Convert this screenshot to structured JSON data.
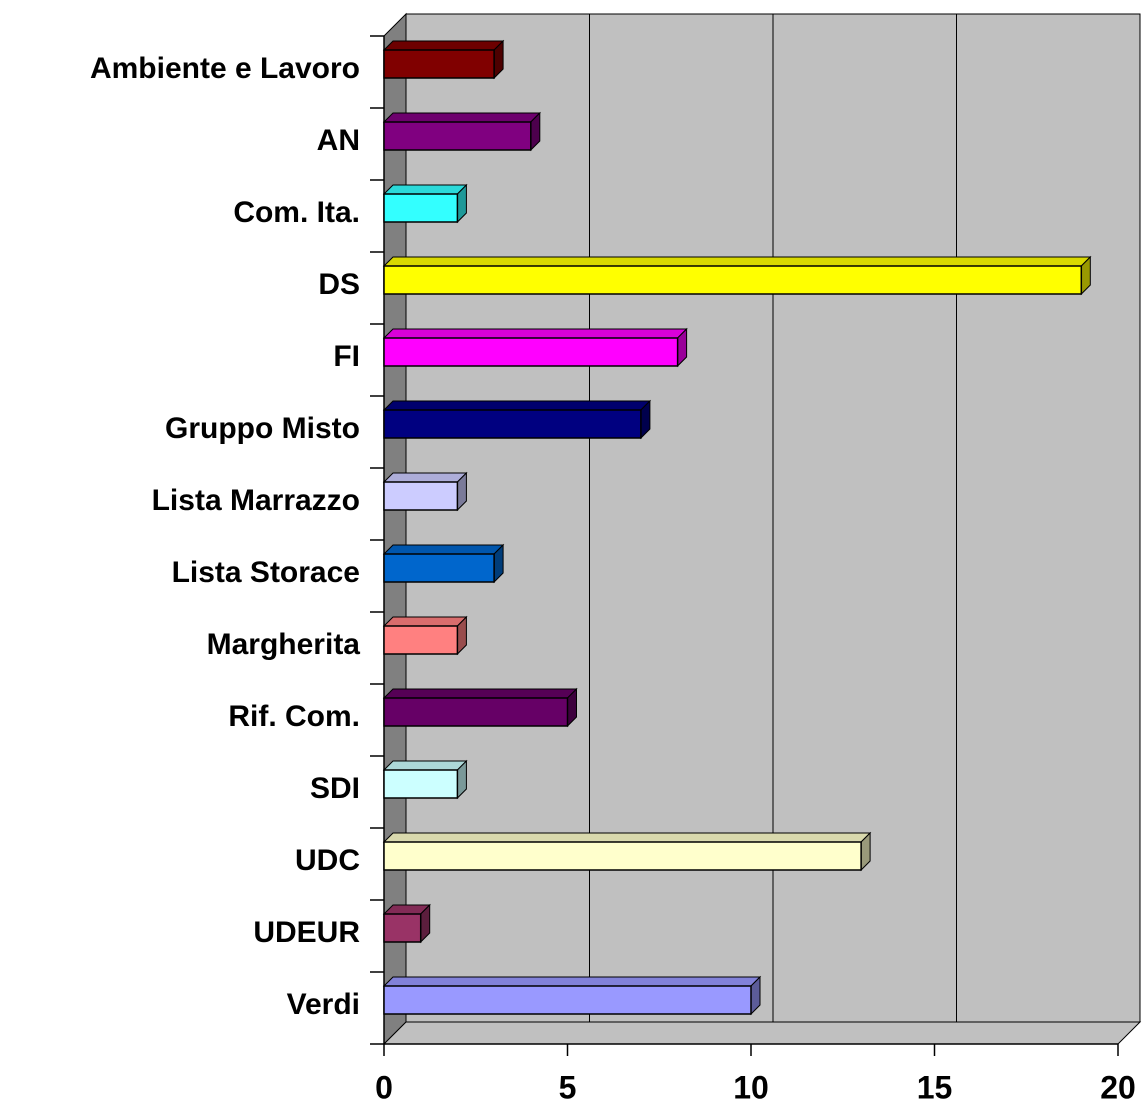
{
  "chart_data": {
    "type": "bar",
    "orientation": "horizontal",
    "categories": [
      "Ambiente e Lavoro",
      "AN",
      "Com. Ita.",
      "DS",
      "FI",
      "Gruppo Misto",
      "Lista Marrazzo",
      "Lista Storace",
      "Margherita",
      "Rif. Com.",
      "SDI",
      "UDC",
      "UDEUR",
      "Verdi"
    ],
    "values": [
      3,
      4,
      2,
      19,
      8,
      7,
      2,
      3,
      2,
      5,
      2,
      13,
      1,
      10
    ],
    "colors": [
      "#800000",
      "#800080",
      "#33ffff",
      "#ffff00",
      "#ff00ff",
      "#000080",
      "#ccccff",
      "#0066cc",
      "#ff8080",
      "#660066",
      "#ccffff",
      "#ffffcc",
      "#993366",
      "#9999ff"
    ],
    "xlim": [
      0,
      20
    ],
    "xticks": [
      0,
      5,
      10,
      15,
      20
    ],
    "grid": true
  }
}
